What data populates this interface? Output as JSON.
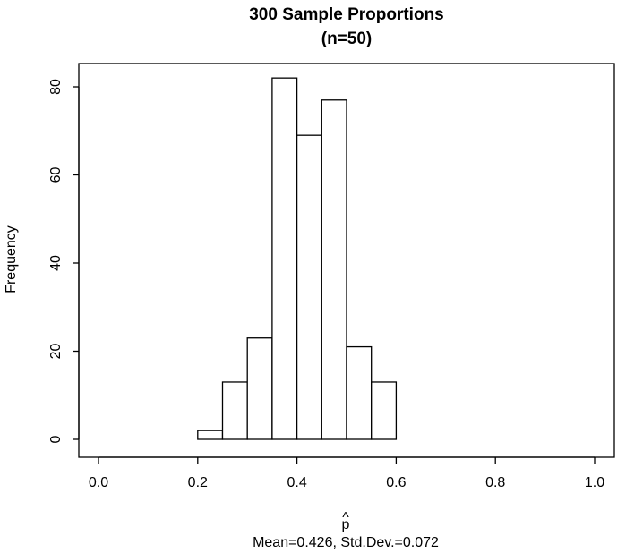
{
  "chart_data": {
    "type": "bar",
    "title_line1": "300 Sample Proportions",
    "title_line2": "(n=50)",
    "xlabel": "p",
    "xlabel_hat": "^",
    "subtitle": "Mean=0.426, Std.Dev.=0.072",
    "ylabel": "Frequency",
    "xlim": [
      0,
      1
    ],
    "ylim": [
      0,
      80
    ],
    "x_ticks": [
      "0.0",
      "0.2",
      "0.4",
      "0.6",
      "0.8",
      "1.0"
    ],
    "y_ticks": [
      "0",
      "20",
      "40",
      "60",
      "80"
    ],
    "bins": [
      {
        "start": 0.2,
        "end": 0.25,
        "count": 2
      },
      {
        "start": 0.25,
        "end": 0.3,
        "count": 13
      },
      {
        "start": 0.3,
        "end": 0.35,
        "count": 23
      },
      {
        "start": 0.35,
        "end": 0.4,
        "count": 82
      },
      {
        "start": 0.4,
        "end": 0.45,
        "count": 69
      },
      {
        "start": 0.45,
        "end": 0.5,
        "count": 77
      },
      {
        "start": 0.5,
        "end": 0.55,
        "count": 21
      },
      {
        "start": 0.55,
        "end": 0.6,
        "count": 13
      }
    ],
    "grid": false,
    "colors": {
      "bar_fill": "#ffffff",
      "bar_stroke": "#000000"
    }
  }
}
